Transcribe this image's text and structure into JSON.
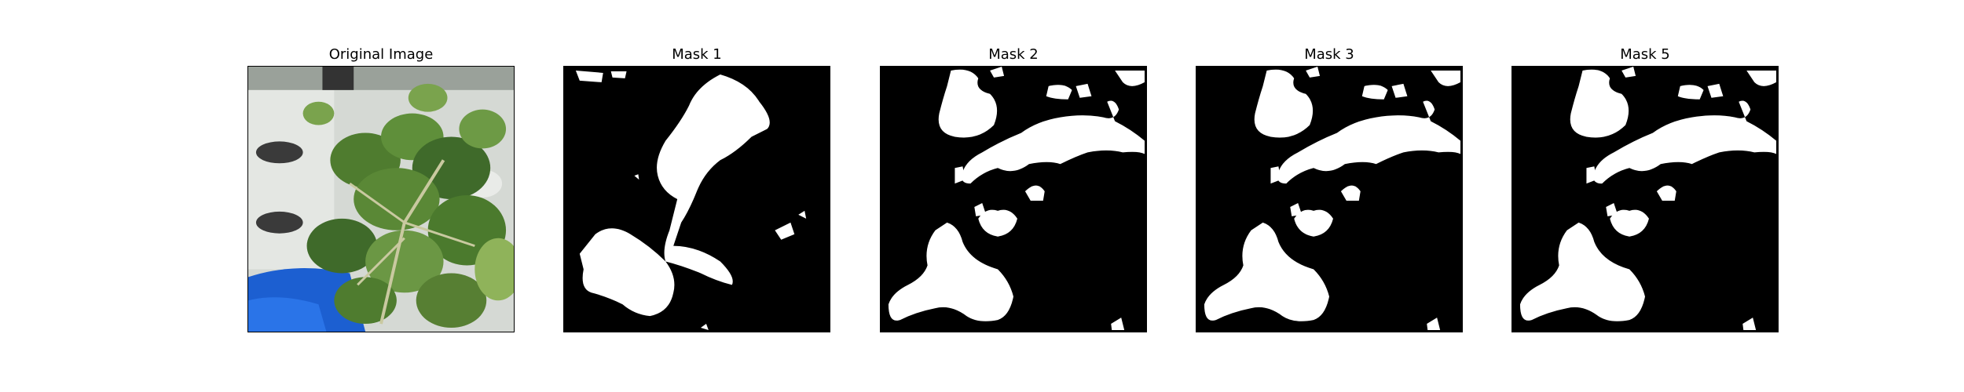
{
  "figure": {
    "panels": [
      {
        "title": "Original Image",
        "kind": "photo",
        "subject": "plant-leaves-on-white-tower-with-blue-base"
      },
      {
        "title": "Mask 1",
        "kind": "mask"
      },
      {
        "title": "Mask 2",
        "kind": "mask"
      },
      {
        "title": "Mask 3",
        "kind": "mask"
      },
      {
        "title": "Mask 5",
        "kind": "mask"
      }
    ],
    "colors": {
      "mask_bg": "#000000",
      "mask_fg": "#ffffff",
      "leaf_dark": "#3f6a2a",
      "leaf_mid": "#5f8f3a",
      "leaf_light": "#8fb35a",
      "tower": "#d9ddd8",
      "blue": "#1c5fd1"
    }
  }
}
